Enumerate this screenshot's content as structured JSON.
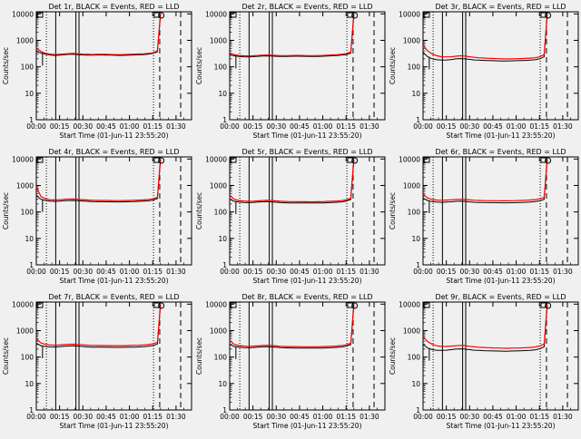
{
  "colors": {
    "background": "#f0f0f0",
    "events": "#000000",
    "lld": "#ff0000",
    "axis": "#000000"
  },
  "common": {
    "xlabel": "Start Time (01-Jun-11 23:55:20)",
    "ylabel": "Counts/sec",
    "x_tick_labels": [
      "00:00",
      "00:15",
      "00:30",
      "00:45",
      "01:00",
      "01:15",
      "01:30"
    ],
    "y_tick_labels": [
      "1",
      "10",
      "100",
      "1000",
      "10000"
    ],
    "xlim_minutes_since_start": [
      0,
      100
    ],
    "ylim": [
      1,
      12000
    ],
    "y_scale": "log"
  },
  "chart_data": [
    {
      "type": "line",
      "title": "Det 1r, BLACK = Events, RED = LLD",
      "x": [
        0,
        3,
        6,
        9,
        12,
        15,
        18,
        21,
        24,
        27,
        30,
        33,
        36,
        39,
        42,
        45,
        48,
        51,
        54,
        57,
        60,
        63,
        66,
        69,
        72,
        75,
        78,
        80
      ],
      "series": [
        {
          "name": "Events",
          "values": [
            380,
            330,
            300,
            280,
            270,
            275,
            285,
            295,
            300,
            290,
            280,
            275,
            275,
            280,
            280,
            278,
            275,
            272,
            270,
            272,
            275,
            280,
            285,
            290,
            300,
            320,
            370,
            9000
          ]
        },
        {
          "name": "LLD",
          "values": [
            520,
            380,
            320,
            300,
            290,
            295,
            305,
            315,
            320,
            310,
            300,
            295,
            292,
            295,
            297,
            295,
            292,
            290,
            290,
            292,
            296,
            300,
            305,
            310,
            320,
            340,
            400,
            10000
          ]
        }
      ]
    },
    {
      "type": "line",
      "title": "Det 2r, BLACK = Events, RED = LLD",
      "x": [
        0,
        3,
        6,
        9,
        12,
        15,
        18,
        21,
        24,
        27,
        30,
        33,
        36,
        39,
        42,
        45,
        48,
        51,
        54,
        57,
        60,
        63,
        66,
        69,
        72,
        75,
        78,
        80
      ],
      "series": [
        {
          "name": "Events",
          "values": [
            280,
            260,
            245,
            240,
            238,
            242,
            248,
            255,
            258,
            255,
            248,
            245,
            245,
            248,
            250,
            250,
            248,
            246,
            245,
            246,
            250,
            255,
            260,
            265,
            275,
            290,
            330,
            9000
          ]
        },
        {
          "name": "LLD",
          "values": [
            330,
            290,
            270,
            262,
            258,
            262,
            268,
            275,
            280,
            276,
            270,
            266,
            265,
            268,
            270,
            270,
            268,
            266,
            265,
            267,
            270,
            276,
            282,
            288,
            298,
            315,
            360,
            10000
          ]
        }
      ]
    },
    {
      "type": "line",
      "title": "Det 3r, BLACK = Events, RED = LLD",
      "x": [
        0,
        3,
        6,
        9,
        12,
        15,
        18,
        21,
        24,
        27,
        30,
        33,
        36,
        39,
        42,
        45,
        48,
        51,
        54,
        57,
        60,
        63,
        66,
        69,
        72,
        75,
        78,
        80
      ],
      "series": [
        {
          "name": "Events",
          "values": [
            350,
            240,
            200,
            185,
            180,
            182,
            188,
            200,
            205,
            200,
            190,
            182,
            178,
            175,
            172,
            170,
            168,
            167,
            166,
            168,
            170,
            172,
            175,
            178,
            185,
            200,
            240,
            9000
          ]
        },
        {
          "name": "LLD",
          "values": [
            650,
            400,
            300,
            260,
            240,
            238,
            240,
            250,
            260,
            255,
            240,
            228,
            220,
            215,
            210,
            206,
            203,
            200,
            198,
            200,
            203,
            205,
            208,
            212,
            220,
            238,
            290,
            10000
          ]
        }
      ]
    },
    {
      "type": "line",
      "title": "Det 4r, BLACK = Events, RED = LLD",
      "x": [
        0,
        3,
        6,
        9,
        12,
        15,
        18,
        21,
        24,
        27,
        30,
        33,
        36,
        39,
        42,
        45,
        48,
        51,
        54,
        57,
        60,
        63,
        66,
        69,
        72,
        75,
        78,
        80
      ],
      "series": [
        {
          "name": "Events",
          "values": [
            420,
            300,
            270,
            255,
            250,
            255,
            265,
            270,
            272,
            268,
            258,
            250,
            245,
            243,
            243,
            242,
            241,
            240,
            240,
            241,
            243,
            246,
            250,
            255,
            262,
            278,
            320,
            9000
          ]
        },
        {
          "name": "LLD",
          "values": [
            900,
            380,
            310,
            290,
            285,
            290,
            300,
            305,
            308,
            302,
            292,
            282,
            276,
            273,
            272,
            271,
            270,
            268,
            268,
            270,
            272,
            276,
            280,
            285,
            293,
            310,
            355,
            10000
          ]
        }
      ]
    },
    {
      "type": "line",
      "title": "Det 5r, BLACK = Events, RED = LLD",
      "x": [
        0,
        3,
        6,
        9,
        12,
        15,
        18,
        21,
        24,
        27,
        30,
        33,
        36,
        39,
        42,
        45,
        48,
        51,
        54,
        57,
        60,
        63,
        66,
        69,
        72,
        75,
        78,
        80
      ],
      "series": [
        {
          "name": "Events",
          "values": [
            300,
            250,
            235,
            228,
            225,
            228,
            235,
            242,
            245,
            240,
            232,
            225,
            222,
            220,
            220,
            219,
            218,
            217,
            217,
            218,
            220,
            223,
            227,
            232,
            240,
            255,
            295,
            9000
          ]
        },
        {
          "name": "LLD",
          "values": [
            420,
            300,
            270,
            258,
            252,
            255,
            262,
            270,
            274,
            270,
            260,
            252,
            248,
            246,
            245,
            244,
            243,
            242,
            242,
            243,
            246,
            250,
            254,
            259,
            268,
            285,
            330,
            10000
          ]
        }
      ]
    },
    {
      "type": "line",
      "title": "Det 6r, BLACK = Events, RED = LLD",
      "x": [
        0,
        3,
        6,
        9,
        12,
        15,
        18,
        21,
        24,
        27,
        30,
        33,
        36,
        39,
        42,
        45,
        48,
        51,
        54,
        57,
        60,
        63,
        66,
        69,
        72,
        75,
        78,
        80
      ],
      "series": [
        {
          "name": "Events",
          "values": [
            330,
            270,
            245,
            235,
            230,
            235,
            242,
            250,
            254,
            250,
            240,
            232,
            228,
            226,
            225,
            224,
            223,
            222,
            222,
            223,
            225,
            228,
            232,
            237,
            246,
            262,
            300,
            9000
          ]
        },
        {
          "name": "LLD",
          "values": [
            480,
            330,
            295,
            280,
            275,
            280,
            288,
            296,
            300,
            295,
            285,
            276,
            271,
            268,
            267,
            266,
            265,
            264,
            264,
            265,
            268,
            272,
            276,
            282,
            292,
            310,
            355,
            10000
          ]
        }
      ]
    },
    {
      "type": "line",
      "title": "Det 7r, BLACK = Events, RED = LLD",
      "x": [
        0,
        3,
        6,
        9,
        12,
        15,
        18,
        21,
        24,
        27,
        30,
        33,
        36,
        39,
        42,
        45,
        48,
        51,
        54,
        57,
        60,
        63,
        66,
        69,
        72,
        75,
        78,
        80
      ],
      "series": [
        {
          "name": "Events",
          "values": [
            330,
            270,
            250,
            242,
            240,
            245,
            255,
            262,
            265,
            260,
            250,
            242,
            238,
            236,
            235,
            234,
            233,
            232,
            232,
            233,
            235,
            238,
            242,
            247,
            255,
            272,
            310,
            9000
          ]
        },
        {
          "name": "LLD",
          "values": [
            500,
            340,
            300,
            285,
            280,
            285,
            295,
            303,
            306,
            300,
            290,
            281,
            276,
            273,
            272,
            271,
            270,
            269,
            269,
            270,
            273,
            277,
            281,
            287,
            297,
            315,
            360,
            10000
          ]
        }
      ]
    },
    {
      "type": "line",
      "title": "Det 8r, BLACK = Events, RED = LLD",
      "x": [
        0,
        3,
        6,
        9,
        12,
        15,
        18,
        21,
        24,
        27,
        30,
        33,
        36,
        39,
        42,
        45,
        48,
        51,
        54,
        57,
        60,
        63,
        66,
        69,
        72,
        75,
        78,
        80
      ],
      "series": [
        {
          "name": "Events",
          "values": [
            300,
            250,
            235,
            228,
            225,
            228,
            236,
            243,
            246,
            242,
            234,
            227,
            223,
            221,
            220,
            219,
            218,
            217,
            217,
            218,
            220,
            223,
            227,
            232,
            240,
            256,
            295,
            9000
          ]
        },
        {
          "name": "LLD",
          "values": [
            420,
            300,
            272,
            260,
            255,
            258,
            266,
            274,
            278,
            273,
            263,
            255,
            251,
            249,
            248,
            247,
            246,
            245,
            245,
            246,
            249,
            253,
            257,
            262,
            271,
            288,
            335,
            10000
          ]
        }
      ]
    },
    {
      "type": "line",
      "title": "Det 9r, BLACK = Events, RED = LLD",
      "x": [
        0,
        3,
        6,
        9,
        12,
        15,
        18,
        21,
        24,
        27,
        30,
        33,
        36,
        39,
        42,
        45,
        48,
        51,
        54,
        57,
        60,
        63,
        66,
        69,
        72,
        75,
        78,
        80
      ],
      "series": [
        {
          "name": "Events",
          "values": [
            300,
            220,
            190,
            180,
            178,
            182,
            190,
            200,
            205,
            200,
            190,
            182,
            178,
            175,
            173,
            171,
            169,
            168,
            167,
            169,
            171,
            173,
            176,
            180,
            188,
            205,
            245,
            9000
          ]
        },
        {
          "name": "LLD",
          "values": [
            600,
            380,
            300,
            265,
            250,
            252,
            258,
            268,
            275,
            270,
            255,
            244,
            236,
            230,
            226,
            222,
            219,
            217,
            215,
            217,
            220,
            222,
            226,
            230,
            240,
            260,
            310,
            10000
          ]
        }
      ]
    }
  ]
}
